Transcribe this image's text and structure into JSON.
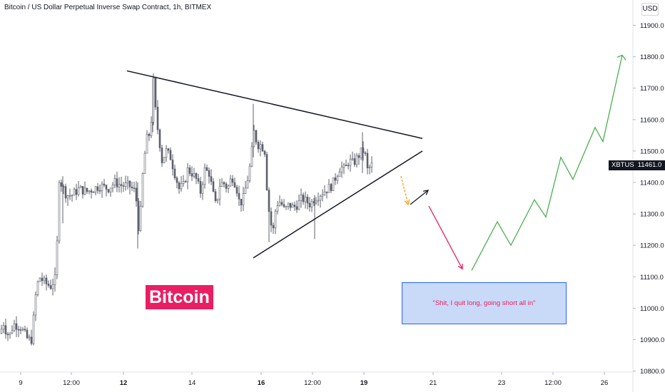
{
  "header": {
    "title": "Bitcoin / US Dollar Perpetual Inverse Swap Contract, 1h, BITMEX",
    "currency": "USD"
  },
  "price_label": {
    "symbol": "XBTUSD",
    "price": "11461.0"
  },
  "brand_label": "Bitcoin",
  "annotation_text": "\"Shit, I quit long, going short all in\"",
  "colors": {
    "candle": "#5d606b",
    "brand_bg": "#e91e63",
    "forecast_up": "#4caf50",
    "forecast_down": "#e91e63",
    "alt_down": "#ff9800",
    "box_fill": "#c8daf8",
    "box_border": "#2962ff"
  },
  "chart_data": {
    "type": "candlestick",
    "title": "Bitcoin / US Dollar Perpetual Inverse Swap Contract, 1h, BITMEX",
    "y_axis": {
      "ylim": [
        10800,
        12000
      ],
      "ticks": [
        "11900.0",
        "11800.0",
        "11700.0",
        "11600.0",
        "11500.0",
        "11400.0",
        "11300.0",
        "11200.0",
        "11100.0",
        "11000.0",
        "10900.0",
        "10800.0"
      ],
      "position": "right"
    },
    "x_axis": {
      "ticks": [
        "9",
        "12:00",
        "12",
        "14",
        "16",
        "12:00",
        "19",
        "21",
        "23",
        "12:00",
        "26"
      ],
      "bold_ticks": [
        "12",
        "16",
        "19"
      ]
    },
    "last_price": 11461.0,
    "price_path": [
      [
        0,
        10920
      ],
      [
        3,
        10960
      ],
      [
        7,
        10930
      ],
      [
        12,
        10910
      ],
      [
        18,
        10950
      ],
      [
        28,
        10940
      ],
      [
        38,
        10900
      ],
      [
        44,
        10900
      ],
      [
        47,
        11000
      ],
      [
        50,
        11060
      ],
      [
        54,
        11100
      ],
      [
        62,
        11080
      ],
      [
        70,
        11070
      ],
      [
        78,
        11100
      ],
      [
        81,
        11420
      ],
      [
        86,
        11390
      ],
      [
        92,
        11360
      ],
      [
        100,
        11360
      ],
      [
        110,
        11380
      ],
      [
        120,
        11370
      ],
      [
        130,
        11380
      ],
      [
        140,
        11390
      ],
      [
        150,
        11380
      ],
      [
        160,
        11400
      ],
      [
        170,
        11390
      ],
      [
        180,
        11390
      ],
      [
        189,
        11370
      ],
      [
        193,
        11260
      ],
      [
        196,
        11310
      ],
      [
        200,
        11460
      ],
      [
        205,
        11540
      ],
      [
        210,
        11560
      ],
      [
        214,
        11720
      ],
      [
        218,
        11600
      ],
      [
        222,
        11540
      ],
      [
        226,
        11470
      ],
      [
        232,
        11500
      ],
      [
        238,
        11480
      ],
      [
        245,
        11420
      ],
      [
        250,
        11380
      ],
      [
        256,
        11390
      ],
      [
        262,
        11440
      ],
      [
        268,
        11430
      ],
      [
        274,
        11410
      ],
      [
        280,
        11370
      ],
      [
        286,
        11440
      ],
      [
        292,
        11430
      ],
      [
        298,
        11360
      ],
      [
        302,
        11320
      ],
      [
        306,
        11390
      ],
      [
        312,
        11400
      ],
      [
        318,
        11380
      ],
      [
        324,
        11420
      ],
      [
        330,
        11390
      ],
      [
        335,
        11330
      ],
      [
        340,
        11350
      ],
      [
        345,
        11400
      ],
      [
        350,
        11460
      ],
      [
        355,
        11560
      ],
      [
        360,
        11520
      ],
      [
        365,
        11520
      ],
      [
        370,
        11500
      ],
      [
        374,
        11350
      ],
      [
        378,
        11270
      ],
      [
        382,
        11250
      ],
      [
        386,
        11330
      ],
      [
        392,
        11340
      ],
      [
        398,
        11310
      ],
      [
        404,
        11330
      ],
      [
        410,
        11320
      ],
      [
        416,
        11330
      ],
      [
        422,
        11350
      ],
      [
        428,
        11340
      ],
      [
        434,
        11330
      ],
      [
        440,
        11350
      ],
      [
        446,
        11360
      ],
      [
        452,
        11370
      ],
      [
        458,
        11380
      ],
      [
        464,
        11390
      ],
      [
        470,
        11420
      ],
      [
        476,
        11450
      ],
      [
        482,
        11440
      ],
      [
        488,
        11470
      ],
      [
        494,
        11460
      ],
      [
        500,
        11480
      ],
      [
        506,
        11500
      ],
      [
        510,
        11500
      ],
      [
        514,
        11440
      ],
      [
        518,
        11450
      ],
      [
        522,
        11460
      ]
    ],
    "trendlines": [
      {
        "name": "upper",
        "from": [
          178,
          11755
        ],
        "to": [
          592,
          11540
        ]
      },
      {
        "name": "lower",
        "from": [
          355,
          11160
        ],
        "to": [
          592,
          11500
        ]
      }
    ],
    "forecast_path": [
      [
        661,
        11120
      ],
      [
        697,
        11275
      ],
      [
        716,
        11200
      ],
      [
        749,
        11345
      ],
      [
        765,
        11290
      ],
      [
        786,
        11480
      ],
      [
        803,
        11410
      ],
      [
        834,
        11575
      ],
      [
        845,
        11530
      ],
      [
        872,
        11805
      ]
    ],
    "arrows": [
      {
        "name": "orange-down",
        "from": [
          562,
          11420
        ],
        "to": [
          572,
          11330
        ]
      },
      {
        "name": "black-up",
        "from": [
          575,
          11330
        ],
        "to": [
          600,
          11375
        ]
      },
      {
        "name": "red-down",
        "from": [
          601,
          11325
        ],
        "to": [
          648,
          11125
        ]
      }
    ]
  }
}
